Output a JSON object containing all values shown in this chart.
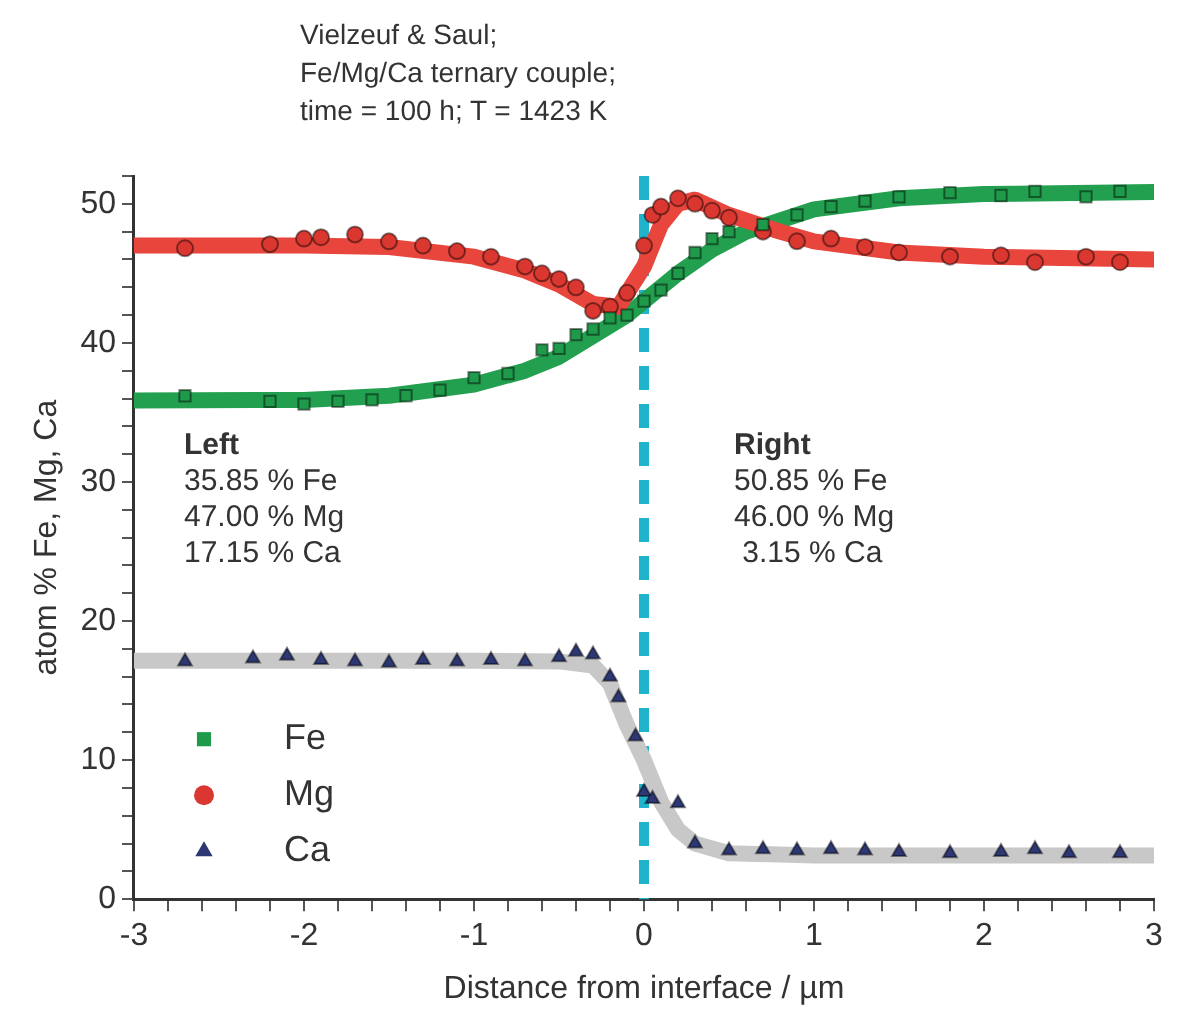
{
  "chart_data": {
    "type": "scatter",
    "title": "Vielzeuf & Saul;\nFe/Mg/Ca ternary couple;\ntime = 100 h; T = 1423 K",
    "xlabel": "Distance from interface / µm",
    "ylabel": "atom % Fe, Mg, Ca",
    "xlim": [
      -3,
      3
    ],
    "ylim": [
      0,
      52
    ],
    "xticks": [
      -3,
      {
        "value": -2.8,
        "label": null
      },
      {
        "value": -2.6,
        "label": null
      },
      {
        "value": -2.4,
        "label": null
      },
      {
        "value": -2.2,
        "label": null
      },
      -2,
      {
        "value": -1.8,
        "label": null
      },
      {
        "value": -1.6,
        "label": null
      },
      {
        "value": -1.4,
        "label": null
      },
      {
        "value": -1.2,
        "label": null
      },
      -1,
      {
        "value": -0.8,
        "label": null
      },
      {
        "value": -0.6,
        "label": null
      },
      {
        "value": -0.4,
        "label": null
      },
      {
        "value": -0.2,
        "label": null
      },
      0,
      {
        "value": 0.2,
        "label": null
      },
      {
        "value": 0.4,
        "label": null
      },
      {
        "value": 0.6,
        "label": null
      },
      {
        "value": 0.8,
        "label": null
      },
      1,
      {
        "value": 1.2,
        "label": null
      },
      {
        "value": 1.4,
        "label": null
      },
      {
        "value": 1.6,
        "label": null
      },
      {
        "value": 1.8,
        "label": null
      },
      2,
      {
        "value": 2.2,
        "label": null
      },
      {
        "value": 2.4,
        "label": null
      },
      {
        "value": 2.6,
        "label": null
      },
      {
        "value": 2.8,
        "label": null
      },
      3
    ],
    "yticks": [
      0,
      {
        "value": 2,
        "label": null
      },
      {
        "value": 4,
        "label": null
      },
      {
        "value": 6,
        "label": null
      },
      {
        "value": 8,
        "label": null
      },
      10,
      {
        "value": 12,
        "label": null
      },
      {
        "value": 14,
        "label": null
      },
      {
        "value": 16,
        "label": null
      },
      {
        "value": 18,
        "label": null
      },
      20,
      {
        "value": 22,
        "label": null
      },
      {
        "value": 24,
        "label": null
      },
      {
        "value": 26,
        "label": null
      },
      {
        "value": 28,
        "label": null
      },
      30,
      {
        "value": 32,
        "label": null
      },
      {
        "value": 34,
        "label": null
      },
      {
        "value": 36,
        "label": null
      },
      {
        "value": 38,
        "label": null
      },
      40,
      {
        "value": 42,
        "label": null
      },
      {
        "value": 44,
        "label": null
      },
      {
        "value": 46,
        "label": null
      },
      {
        "value": 48,
        "label": null
      },
      50,
      {
        "value": 52,
        "label": null
      }
    ],
    "grid": false,
    "legend": "bottom left",
    "ref_lines": [
      {
        "axis": "x",
        "value": 0,
        "label": null,
        "color": "#1fb3cc",
        "line_style": "dashed"
      }
    ],
    "annotations": [
      "Left\n35.85 % Fe\n47.00 % Mg\n17.15 % Ca",
      "Right\n50.85 % Fe\n46.00 % Mg\n 3.15 % Ca"
    ],
    "series": [
      {
        "type": "line",
        "marker": "none",
        "color": "#c8c8c8",
        "x": [
          -3,
          -1,
          -0.5,
          -0.3,
          -0.2,
          -0.1,
          0,
          0.1,
          0.2,
          0.3,
          0.5,
          1,
          3
        ],
        "values": [
          17.15,
          17.15,
          17.1,
          16.8,
          15.5,
          12.5,
          10,
          7,
          5,
          4,
          3.3,
          3.15,
          3.15
        ]
      },
      {
        "type": "line",
        "marker": "none",
        "color": "#e8453c",
        "x": [
          -3,
          -2,
          -1.5,
          -1,
          -0.7,
          -0.5,
          -0.3,
          -0.15,
          0,
          0.1,
          0.2,
          0.3,
          0.5,
          0.8,
          1,
          1.5,
          2,
          3
        ],
        "values": [
          47,
          47,
          46.9,
          46.2,
          45.2,
          44.2,
          42.8,
          42.6,
          45.5,
          48.5,
          50,
          50.3,
          49.2,
          48,
          47.3,
          46.5,
          46.2,
          46
        ]
      },
      {
        "type": "line",
        "marker": "none",
        "color": "#22a04f",
        "x": [
          -3,
          -2,
          -1.5,
          -1,
          -0.7,
          -0.5,
          -0.3,
          -0.1,
          0,
          0.2,
          0.4,
          0.6,
          1,
          1.5,
          2,
          3
        ],
        "values": [
          35.85,
          35.9,
          36.2,
          37,
          38,
          39,
          40.5,
          42,
          43,
          45,
          46.7,
          48,
          49.6,
          50.4,
          50.7,
          50.85
        ]
      },
      {
        "name": "Fe",
        "marker": "square",
        "color": "#1e9a4a",
        "x": [
          -2.7,
          -2.2,
          -2,
          -1.8,
          -1.6,
          -1.4,
          -1.2,
          -1,
          -0.8,
          -0.6,
          -0.5,
          -0.4,
          -0.3,
          -0.2,
          -0.1,
          0,
          0.1,
          0.2,
          0.3,
          0.4,
          0.5,
          0.7,
          0.9,
          1.1,
          1.3,
          1.5,
          1.8,
          2.1,
          2.3,
          2.6,
          2.8
        ],
        "values": [
          36.2,
          35.8,
          35.6,
          35.8,
          35.9,
          36.2,
          36.6,
          37.5,
          37.8,
          39.5,
          39.6,
          40.6,
          41,
          41.8,
          42,
          43,
          43.8,
          45,
          46.5,
          47.5,
          48,
          48.5,
          49.2,
          49.8,
          50.2,
          50.5,
          50.8,
          50.6,
          50.9,
          50.5,
          50.9
        ]
      },
      {
        "name": "Mg",
        "marker": "circle",
        "color": "#d9372f",
        "x": [
          -2.7,
          -2.2,
          -2,
          -1.9,
          -1.7,
          -1.5,
          -1.3,
          -1.1,
          -0.9,
          -0.7,
          -0.6,
          -0.5,
          -0.4,
          -0.3,
          -0.2,
          -0.1,
          0,
          0.05,
          0.1,
          0.2,
          0.3,
          0.4,
          0.5,
          0.7,
          0.9,
          1.1,
          1.3,
          1.5,
          1.8,
          2.1,
          2.3,
          2.6,
          2.8
        ],
        "values": [
          46.8,
          47.1,
          47.5,
          47.6,
          47.8,
          47.3,
          47,
          46.6,
          46.2,
          45.5,
          45,
          44.6,
          44,
          42.3,
          42.6,
          43.6,
          47,
          49.2,
          49.8,
          50.4,
          50,
          49.5,
          49,
          48,
          47.3,
          47.5,
          46.9,
          46.5,
          46.2,
          46.3,
          45.8,
          46.2,
          45.8
        ]
      },
      {
        "name": "Ca",
        "marker": "triangle",
        "color": "#2c3773",
        "x": [
          -2.7,
          -2.3,
          -2.1,
          -1.9,
          -1.7,
          -1.5,
          -1.3,
          -1.1,
          -0.9,
          -0.7,
          -0.5,
          -0.4,
          -0.3,
          -0.2,
          -0.15,
          -0.05,
          0,
          0.05,
          0.2,
          0.3,
          0.5,
          0.7,
          0.9,
          1.1,
          1.3,
          1.5,
          1.8,
          2.1,
          2.3,
          2.5,
          2.8
        ],
        "values": [
          17.1,
          17.3,
          17.5,
          17.2,
          17.1,
          17.0,
          17.2,
          17.1,
          17.2,
          17.1,
          17.4,
          17.8,
          17.6,
          16,
          14.5,
          11.7,
          7.7,
          7.2,
          6.9,
          4,
          3.5,
          3.6,
          3.5,
          3.6,
          3.5,
          3.4,
          3.3,
          3.4,
          3.6,
          3.3,
          3.3
        ]
      }
    ]
  }
}
